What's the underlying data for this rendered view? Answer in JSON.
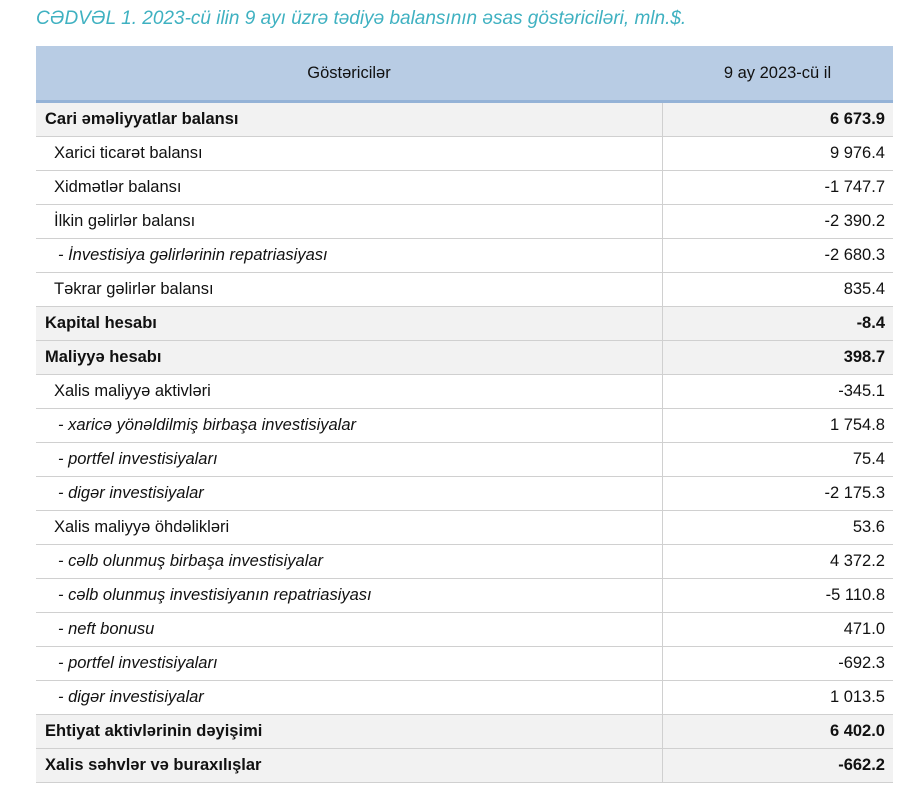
{
  "title": "CƏDVƏL 1. 2023-cü ilin 9 ayı üzrə tədiyə balansının əsas göstəriciləri, mln.$.",
  "table": {
    "header": [
      "Göstəricilər",
      "9 ay 2023-cü il"
    ],
    "rows": [
      [
        "Cari əməliyyatlar balansı",
        "6 673.9"
      ],
      [
        "Xarici ticarət balansı",
        "9 976.4"
      ],
      [
        "Xidmətlər balansı",
        "-1 747.7"
      ],
      [
        "İlkin gəlirlər balansı",
        "-2 390.2"
      ],
      [
        "- İnvestisiya gəlirlərinin repatriasiyası",
        "-2 680.3"
      ],
      [
        "Təkrar gəlirlər balansı",
        "835.4"
      ],
      [
        "Kapital hesabı",
        "-8.4"
      ],
      [
        "Maliyyə hesabı",
        "398.7"
      ],
      [
        "Xalis maliyyə aktivləri",
        "-345.1"
      ],
      [
        "- xaricə yönəldilmiş birbaşa investisiyalar",
        "1 754.8"
      ],
      [
        "- portfel investisiyaları",
        "75.4"
      ],
      [
        "- digər investisiyalar",
        "-2 175.3"
      ],
      [
        "Xalis maliyyə öhdəlikləri",
        "53.6"
      ],
      [
        "- cəlb olunmuş birbaşa investisiyalar",
        "4 372.2"
      ],
      [
        "- cəlb olunmuş investisiyanın repatriasiyası",
        "-5 110.8"
      ],
      [
        "- neft bonusu",
        "471.0"
      ],
      [
        "- portfel investisiyaları",
        "-692.3"
      ],
      [
        "- digər investisiyalar",
        "1 013.5"
      ],
      [
        "Ehtiyat aktivlərinin dəyişimi",
        "6 402.0"
      ],
      [
        "Xalis səhvlər və buraxılışlar",
        "-662.2"
      ]
    ]
  }
}
